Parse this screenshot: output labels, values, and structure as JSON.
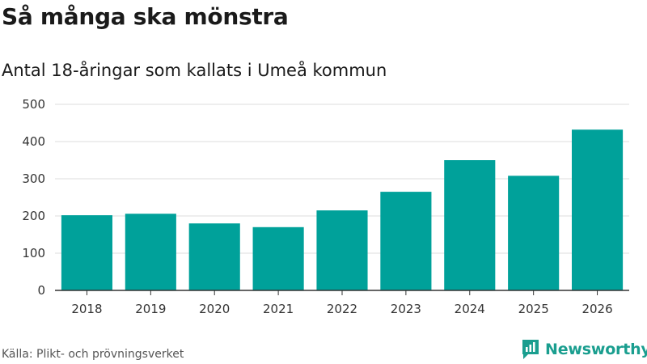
{
  "header": {
    "title": "Så många ska mönstra",
    "subtitle": "Antal 18-åringar som kallats i Umeå kommun"
  },
  "footer": {
    "source": "Källa: Plikt- och prövningsverket",
    "brand": "Newsworthy",
    "brand_icon": "newsworthy-logo-icon"
  },
  "colors": {
    "bar": "#00a19a",
    "grid": "#dedede",
    "axis": "#333333",
    "brand": "#1a9e8f"
  },
  "chart_data": {
    "type": "bar",
    "title": "Så många ska mönstra",
    "subtitle": "Antal 18-åringar som kallats i Umeå kommun",
    "categories": [
      "2018",
      "2019",
      "2020",
      "2021",
      "2022",
      "2023",
      "2024",
      "2025",
      "2026"
    ],
    "values": [
      202,
      206,
      180,
      170,
      215,
      265,
      350,
      308,
      432
    ],
    "xlabel": "",
    "ylabel": "",
    "ylim": [
      0,
      500
    ],
    "yticks": [
      "0",
      "100",
      "200",
      "300",
      "400",
      "500"
    ],
    "grid": true
  }
}
